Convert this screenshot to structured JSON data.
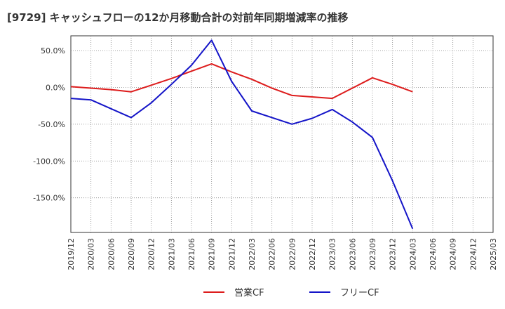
{
  "chart_data": {
    "type": "line",
    "title": "[9729]  キャッシュフローの12か月移動合計の対前年同期増減率の推移",
    "xlabel": "",
    "ylabel": "",
    "x": [
      "2019/12",
      "2020/03",
      "2020/06",
      "2020/09",
      "2020/12",
      "2021/03",
      "2021/06",
      "2021/09",
      "2021/12",
      "2022/03",
      "2022/06",
      "2022/09",
      "2022/12",
      "2023/03",
      "2023/06",
      "2023/09",
      "2023/12",
      "2024/03",
      "2024/06",
      "2024/09",
      "2024/12",
      "2025/03"
    ],
    "ylim": [
      -197,
      70
    ],
    "yticks": [
      50,
      0,
      -50,
      -100,
      -150
    ],
    "ytick_labels": [
      "50.0%",
      "0.0%",
      "-50.0%",
      "-100.0%",
      "-150.0%"
    ],
    "grid": true,
    "legend_position": "bottom",
    "series": [
      {
        "name": "営業CF",
        "color": "#dd1c1c",
        "values": [
          1,
          -1,
          -3,
          -6,
          3,
          12,
          22,
          32,
          21,
          11,
          -1,
          -11,
          -13,
          -15,
          -1,
          13,
          4,
          -6,
          null,
          null,
          null,
          null
        ]
      },
      {
        "name": "フリーCF",
        "color": "#1414c8",
        "values": [
          -15,
          -17,
          -29,
          -41,
          -21,
          4,
          30,
          64,
          8,
          -32,
          -41,
          -50,
          -42,
          -30,
          -47,
          -68,
          -127,
          -192,
          null,
          null,
          null,
          null
        ]
      }
    ]
  }
}
